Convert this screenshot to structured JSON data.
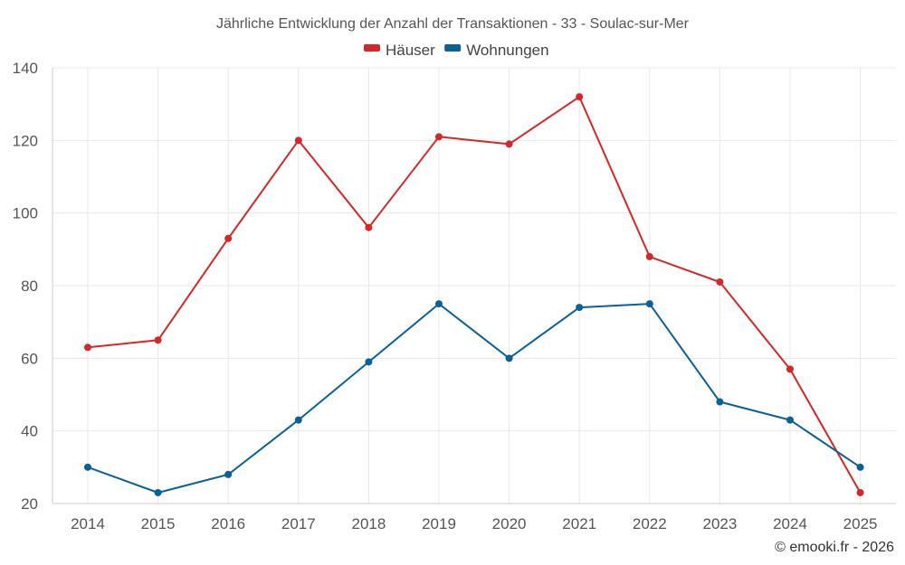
{
  "chart_data": {
    "type": "line",
    "title": "Jährliche Entwicklung der Anzahl der Transaktionen - 33 - Soulac-sur-Mer",
    "xlabel": "",
    "ylabel": "",
    "categories": [
      "2014",
      "2015",
      "2016",
      "2017",
      "2018",
      "2019",
      "2020",
      "2021",
      "2022",
      "2023",
      "2024",
      "2025"
    ],
    "ylim": [
      20,
      140
    ],
    "yticks": [
      20,
      40,
      60,
      80,
      100,
      120,
      140
    ],
    "grid": true,
    "legend_position": "top-center",
    "series": [
      {
        "name": "Häuser",
        "color": "#d62728",
        "values": [
          63,
          65,
          93,
          120,
          96,
          121,
          119,
          132,
          88,
          81,
          57,
          23
        ]
      },
      {
        "name": "Wohnungen",
        "color": "#0a6199",
        "values": [
          30,
          23,
          28,
          43,
          59,
          75,
          60,
          74,
          75,
          48,
          43,
          30
        ]
      }
    ]
  },
  "credit": "© emooki.fr - 2026"
}
